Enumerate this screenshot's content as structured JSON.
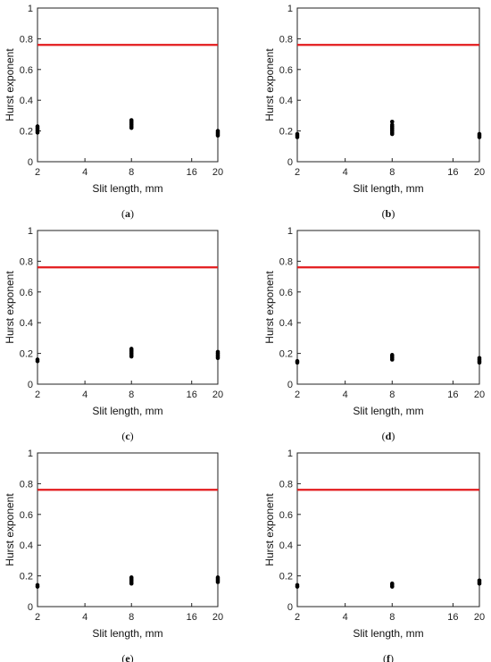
{
  "chart_data": [
    {
      "type": "scatter",
      "panel_label": "(a)",
      "xlabel": "Slit length, mm",
      "ylabel": "Hurst exponent",
      "x_ticks": [
        "2",
        "4",
        "8",
        "16",
        "20"
      ],
      "y_ticks": [
        "0",
        "0.2",
        "0.4",
        "0.6",
        "0.8",
        "1"
      ],
      "ylim": [
        0,
        1
      ],
      "hline": {
        "y": 0.76,
        "color": "#e31a1c"
      },
      "series": [
        {
          "x": 2,
          "y": [
            0.19,
            0.2,
            0.21,
            0.22,
            0.23
          ]
        },
        {
          "x": 8,
          "y": [
            0.22,
            0.23,
            0.24,
            0.25,
            0.26,
            0.27
          ]
        },
        {
          "x": 20,
          "y": [
            0.17,
            0.18,
            0.19,
            0.2
          ]
        }
      ]
    },
    {
      "type": "scatter",
      "panel_label": "(b)",
      "xlabel": "Slit length, mm",
      "ylabel": "Hurst exponent",
      "x_ticks": [
        "2",
        "4",
        "8",
        "16",
        "20"
      ],
      "y_ticks": [
        "0",
        "0.2",
        "0.4",
        "0.6",
        "0.8",
        "1"
      ],
      "ylim": [
        0,
        1
      ],
      "hline": {
        "y": 0.76,
        "color": "#e31a1c"
      },
      "series": [
        {
          "x": 2,
          "y": [
            0.16,
            0.17,
            0.18
          ]
        },
        {
          "x": 8,
          "y": [
            0.18,
            0.19,
            0.2,
            0.21,
            0.22,
            0.23,
            0.24,
            0.26
          ]
        },
        {
          "x": 20,
          "y": [
            0.16,
            0.17,
            0.18
          ]
        }
      ]
    },
    {
      "type": "scatter",
      "panel_label": "(c)",
      "xlabel": "Slit length, mm",
      "ylabel": "Hurst exponent",
      "x_ticks": [
        "2",
        "4",
        "8",
        "16",
        "20"
      ],
      "y_ticks": [
        "0",
        "0.2",
        "0.4",
        "0.6",
        "0.8",
        "1"
      ],
      "ylim": [
        0,
        1
      ],
      "hline": {
        "y": 0.76,
        "color": "#e31a1c"
      },
      "series": [
        {
          "x": 2,
          "y": [
            0.15,
            0.16
          ]
        },
        {
          "x": 8,
          "y": [
            0.18,
            0.19,
            0.2,
            0.21,
            0.22,
            0.23
          ]
        },
        {
          "x": 20,
          "y": [
            0.17,
            0.18,
            0.19,
            0.2,
            0.21
          ]
        }
      ]
    },
    {
      "type": "scatter",
      "panel_label": "(d)",
      "xlabel": "Slit length, mm",
      "ylabel": "Hurst exponent",
      "x_ticks": [
        "2",
        "4",
        "8",
        "16",
        "20"
      ],
      "y_ticks": [
        "0",
        "0.2",
        "0.4",
        "0.6",
        "0.8",
        "1"
      ],
      "ylim": [
        0,
        1
      ],
      "hline": {
        "y": 0.76,
        "color": "#e31a1c"
      },
      "series": [
        {
          "x": 2,
          "y": [
            0.14,
            0.15
          ]
        },
        {
          "x": 8,
          "y": [
            0.16,
            0.17,
            0.18,
            0.19
          ]
        },
        {
          "x": 20,
          "y": [
            0.14,
            0.15,
            0.16,
            0.17
          ]
        }
      ]
    },
    {
      "type": "scatter",
      "panel_label": "(e)",
      "xlabel": "Slit length, mm",
      "ylabel": "Hurst exponent",
      "x_ticks": [
        "2",
        "4",
        "8",
        "16",
        "20"
      ],
      "y_ticks": [
        "0",
        "0.2",
        "0.4",
        "0.6",
        "0.8",
        "1"
      ],
      "ylim": [
        0,
        1
      ],
      "hline": {
        "y": 0.76,
        "color": "#e31a1c"
      },
      "series": [
        {
          "x": 2,
          "y": [
            0.13,
            0.14
          ]
        },
        {
          "x": 8,
          "y": [
            0.15,
            0.16,
            0.17,
            0.18,
            0.19
          ]
        },
        {
          "x": 20,
          "y": [
            0.16,
            0.17,
            0.18,
            0.19
          ]
        }
      ]
    },
    {
      "type": "scatter",
      "panel_label": "(f)",
      "xlabel": "Slit length, mm",
      "ylabel": "Hurst exponent",
      "x_ticks": [
        "2",
        "4",
        "8",
        "16",
        "20"
      ],
      "y_ticks": [
        "0",
        "0.2",
        "0.4",
        "0.6",
        "0.8",
        "1"
      ],
      "ylim": [
        0,
        1
      ],
      "hline": {
        "y": 0.76,
        "color": "#e31a1c"
      },
      "series": [
        {
          "x": 2,
          "y": [
            0.13,
            0.14
          ]
        },
        {
          "x": 8,
          "y": [
            0.13,
            0.14,
            0.15
          ]
        },
        {
          "x": 20,
          "y": [
            0.15,
            0.16,
            0.17
          ]
        }
      ]
    }
  ]
}
